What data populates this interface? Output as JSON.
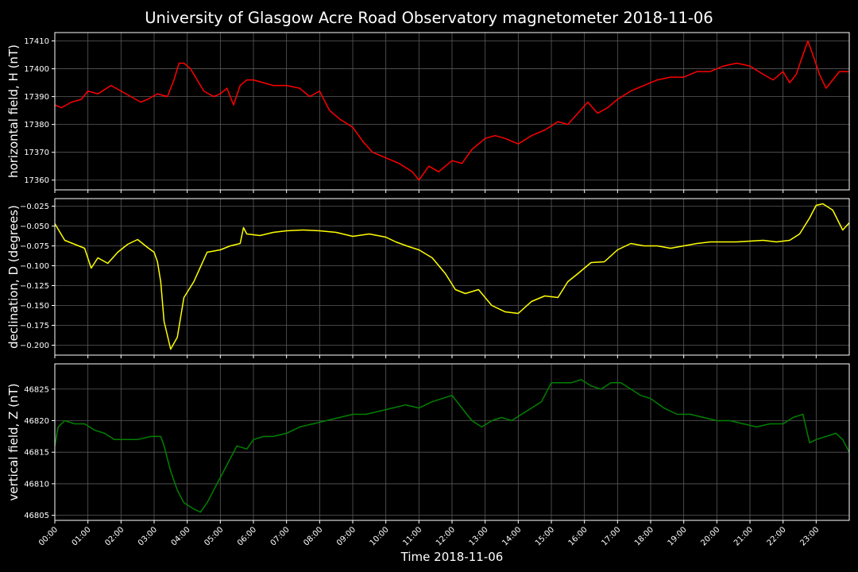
{
  "chart_data": {
    "type": "line",
    "title": "University of Glasgow Acre Road Observatory magnetometer 2018-11-06",
    "xlabel": "Time 2018-11-06",
    "x_ticks": [
      "00:00",
      "01:00",
      "02:00",
      "03:00",
      "04:00",
      "05:00",
      "06:00",
      "07:00",
      "08:00",
      "09:00",
      "10:00",
      "11:00",
      "12:00",
      "13:00",
      "14:00",
      "15:00",
      "16:00",
      "17:00",
      "18:00",
      "19:00",
      "20:00",
      "21:00",
      "22:00",
      "23:00"
    ],
    "xlim_hours": [
      0,
      24
    ],
    "grid": true,
    "panels": [
      {
        "name": "horizontal",
        "ylabel": "horizontal field, H (nT)",
        "color": "#ff0000",
        "ylim": [
          17356.5,
          17413
        ],
        "yticks": [
          17360,
          17370,
          17380,
          17390,
          17400,
          17410
        ],
        "ytick_labels": [
          "17360",
          "17370",
          "17380",
          "17390",
          "17400",
          "17410"
        ],
        "x": [
          0,
          0.2,
          0.5,
          0.8,
          1.0,
          1.3,
          1.7,
          2.0,
          2.3,
          2.6,
          2.8,
          3.1,
          3.4,
          3.6,
          3.75,
          3.9,
          4.1,
          4.3,
          4.5,
          4.8,
          5.0,
          5.2,
          5.4,
          5.6,
          5.8,
          6.0,
          6.3,
          6.6,
          7.0,
          7.4,
          7.7,
          8.0,
          8.3,
          8.6,
          9.0,
          9.3,
          9.6,
          10.0,
          10.4,
          10.8,
          11.0,
          11.3,
          11.6,
          12.0,
          12.3,
          12.6,
          13.0,
          13.3,
          13.6,
          14.0,
          14.4,
          14.8,
          15.2,
          15.5,
          15.8,
          16.1,
          16.4,
          16.7,
          17.0,
          17.4,
          17.8,
          18.2,
          18.6,
          19.0,
          19.4,
          19.8,
          20.2,
          20.6,
          21.0,
          21.4,
          21.7,
          22.0,
          22.2,
          22.4,
          22.6,
          22.75,
          22.9,
          23.1,
          23.3,
          23.5,
          23.7,
          24.0
        ],
        "y": [
          17387,
          17386,
          17388,
          17389,
          17392,
          17391,
          17394,
          17392,
          17390,
          17388,
          17389,
          17391,
          17390,
          17396,
          17402,
          17402,
          17400,
          17396,
          17392,
          17390,
          17391,
          17393,
          17387,
          17394,
          17396,
          17396,
          17395,
          17394,
          17394,
          17393,
          17390,
          17392,
          17385,
          17382,
          17379,
          17374,
          17370,
          17368,
          17366,
          17363,
          17360,
          17365,
          17363,
          17367,
          17366,
          17371,
          17375,
          17376,
          17375,
          17373,
          17376,
          17378,
          17381,
          17380,
          17384,
          17388,
          17384,
          17386,
          17389,
          17392,
          17394,
          17396,
          17397,
          17397,
          17399,
          17399,
          17401,
          17402,
          17401,
          17398,
          17396,
          17399,
          17395,
          17398,
          17405,
          17410,
          17405,
          17398,
          17393,
          17396,
          17399,
          17399
        ]
      },
      {
        "name": "declination",
        "ylabel": "declination, D (degrees)",
        "color": "#ffff00",
        "ylim": [
          -0.2125,
          -0.0155
        ],
        "yticks": [
          -0.2,
          -0.175,
          -0.15,
          -0.125,
          -0.1,
          -0.075,
          -0.05,
          -0.025
        ],
        "ytick_labels": [
          "−0.200",
          "−0.175",
          "−0.150",
          "−0.125",
          "−0.100",
          "−0.075",
          "−0.050",
          "−0.025"
        ],
        "x": [
          0,
          0.3,
          0.6,
          0.9,
          1.1,
          1.3,
          1.6,
          1.9,
          2.2,
          2.5,
          2.8,
          3.0,
          3.1,
          3.2,
          3.3,
          3.5,
          3.7,
          3.9,
          4.2,
          4.6,
          5.0,
          5.3,
          5.6,
          5.7,
          5.8,
          6.2,
          6.6,
          7.0,
          7.5,
          8.0,
          8.5,
          9.0,
          9.5,
          10.0,
          10.3,
          10.7,
          11.0,
          11.4,
          11.8,
          12.1,
          12.4,
          12.8,
          13.2,
          13.6,
          14.0,
          14.4,
          14.8,
          15.2,
          15.5,
          15.8,
          16.2,
          16.6,
          17.0,
          17.4,
          17.8,
          18.2,
          18.6,
          19.0,
          19.4,
          19.8,
          20.2,
          20.6,
          21.0,
          21.4,
          21.8,
          22.2,
          22.5,
          22.8,
          23.0,
          23.2,
          23.5,
          23.8,
          24.0
        ],
        "y": [
          -0.047,
          -0.068,
          -0.073,
          -0.078,
          -0.103,
          -0.09,
          -0.097,
          -0.083,
          -0.073,
          -0.067,
          -0.077,
          -0.083,
          -0.095,
          -0.12,
          -0.17,
          -0.205,
          -0.19,
          -0.14,
          -0.12,
          -0.083,
          -0.08,
          -0.075,
          -0.072,
          -0.052,
          -0.06,
          -0.062,
          -0.058,
          -0.056,
          -0.055,
          -0.056,
          -0.058,
          -0.063,
          -0.06,
          -0.064,
          -0.07,
          -0.076,
          -0.08,
          -0.09,
          -0.11,
          -0.13,
          -0.135,
          -0.13,
          -0.15,
          -0.158,
          -0.16,
          -0.145,
          -0.138,
          -0.14,
          -0.12,
          -0.11,
          -0.096,
          -0.095,
          -0.08,
          -0.072,
          -0.075,
          -0.075,
          -0.078,
          -0.075,
          -0.072,
          -0.07,
          -0.07,
          -0.07,
          -0.069,
          -0.068,
          -0.07,
          -0.068,
          -0.06,
          -0.04,
          -0.024,
          -0.022,
          -0.03,
          -0.055,
          -0.046
        ]
      },
      {
        "name": "vertical",
        "ylabel": "vertical field, Z (nT)",
        "color": "#008000",
        "ylim": [
          46804.2,
          46829
        ],
        "yticks": [
          46805,
          46810,
          46815,
          46820,
          46825
        ],
        "ytick_labels": [
          "46805",
          "46810",
          "46815",
          "46820",
          "46825"
        ],
        "x": [
          0,
          0.1,
          0.3,
          0.6,
          0.9,
          1.2,
          1.5,
          1.8,
          2.1,
          2.5,
          2.9,
          3.2,
          3.3,
          3.5,
          3.7,
          3.9,
          4.2,
          4.4,
          4.6,
          4.9,
          5.2,
          5.5,
          5.8,
          6.0,
          6.3,
          6.6,
          7.0,
          7.4,
          7.8,
          8.2,
          8.6,
          9.0,
          9.4,
          9.8,
          10.2,
          10.6,
          11.0,
          11.4,
          11.7,
          12.0,
          12.3,
          12.6,
          12.9,
          13.2,
          13.5,
          13.8,
          14.1,
          14.4,
          14.7,
          15.0,
          15.3,
          15.6,
          15.9,
          16.2,
          16.5,
          16.8,
          17.1,
          17.4,
          17.7,
          18.0,
          18.4,
          18.8,
          19.2,
          19.6,
          20.0,
          20.4,
          20.8,
          21.2,
          21.6,
          22.0,
          22.3,
          22.6,
          22.8,
          23.0,
          23.3,
          23.6,
          23.8,
          24.0
        ],
        "y": [
          46816,
          46819,
          46820,
          46819.5,
          46819.5,
          46818.5,
          46818,
          46817,
          46817,
          46817,
          46817.5,
          46817.5,
          46816,
          46812,
          46809,
          46807,
          46806,
          46805.5,
          46807,
          46810,
          46813,
          46816,
          46815.5,
          46817,
          46817.5,
          46817.5,
          46818,
          46819,
          46819.5,
          46820,
          46820.5,
          46821,
          46821,
          46821.5,
          46822,
          46822.5,
          46822,
          46823,
          46823.5,
          46824,
          46822,
          46820,
          46819,
          46820,
          46820.5,
          46820,
          46821,
          46822,
          46823,
          46826,
          46826,
          46826,
          46826.5,
          46825.5,
          46825,
          46826,
          46826,
          46825,
          46824,
          46823.5,
          46822,
          46821,
          46821,
          46820.5,
          46820,
          46820,
          46819.5,
          46819,
          46819.5,
          46819.5,
          46820.5,
          46821,
          46816.5,
          46817,
          46817.5,
          46818,
          46817,
          46815
        ]
      }
    ]
  }
}
